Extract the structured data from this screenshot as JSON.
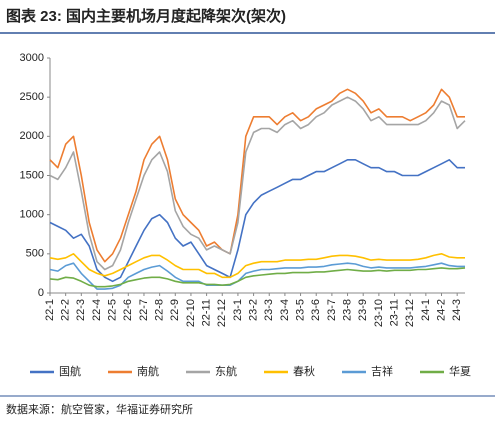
{
  "chart_data": {
    "type": "line",
    "title": "图表 23:  国内主要机场月度起降架次(架次)",
    "source": "数据来源：航空管家，华福证券研究所",
    "categories": [
      "22-1",
      null,
      "22-2",
      null,
      "22-3",
      null,
      "22-4",
      null,
      "22-5",
      null,
      "22-6",
      null,
      "22-7",
      null,
      "22-8",
      null,
      "22-9",
      null,
      "22-10",
      null,
      "22-11",
      null,
      "22-12",
      null,
      "23-1",
      null,
      "23-2",
      null,
      "23-3",
      null,
      "23-4",
      null,
      "23-5",
      null,
      "23-6",
      null,
      "23-7",
      null,
      "23-8",
      null,
      "23-9",
      null,
      "23-10",
      null,
      "23-11",
      null,
      "23-12",
      null,
      "24-1",
      null,
      "24-2",
      null,
      "24-3",
      null
    ],
    "ylim": [
      0,
      3000
    ],
    "yticks": [
      0,
      500,
      1000,
      1500,
      2000,
      2500,
      3000
    ],
    "grid": false,
    "legend": "bottom",
    "series": [
      {
        "name": "国航",
        "color": "#4472c4",
        "values": [
          900,
          850,
          800,
          700,
          750,
          600,
          300,
          200,
          150,
          200,
          400,
          600,
          800,
          950,
          1000,
          900,
          700,
          600,
          650,
          500,
          350,
          300,
          250,
          200,
          550,
          1000,
          1150,
          1250,
          1300,
          1350,
          1400,
          1450,
          1450,
          1500,
          1550,
          1550,
          1600,
          1650,
          1700,
          1700,
          1650,
          1600,
          1600,
          1550,
          1550,
          1500,
          1500,
          1500,
          1550,
          1600,
          1650,
          1700,
          1600,
          1600
        ]
      },
      {
        "name": "南航",
        "color": "#ed7d31",
        "values": [
          1700,
          1600,
          1900,
          2000,
          1500,
          900,
          550,
          400,
          500,
          700,
          1000,
          1300,
          1700,
          1900,
          2000,
          1700,
          1200,
          1000,
          900,
          800,
          600,
          650,
          550,
          500,
          1000,
          2000,
          2250,
          2250,
          2250,
          2150,
          2250,
          2300,
          2200,
          2250,
          2350,
          2400,
          2450,
          2550,
          2600,
          2550,
          2450,
          2300,
          2350,
          2250,
          2250,
          2250,
          2200,
          2250,
          2300,
          2400,
          2600,
          2500,
          2250,
          2250
        ]
      },
      {
        "name": "东航",
        "color": "#a5a5a5",
        "values": [
          1500,
          1450,
          1600,
          1800,
          1300,
          750,
          400,
          300,
          350,
          550,
          900,
          1200,
          1500,
          1700,
          1800,
          1550,
          1050,
          850,
          750,
          700,
          550,
          600,
          550,
          500,
          900,
          1800,
          2050,
          2100,
          2100,
          2050,
          2150,
          2200,
          2100,
          2150,
          2250,
          2300,
          2400,
          2450,
          2500,
          2450,
          2350,
          2200,
          2250,
          2150,
          2150,
          2150,
          2150,
          2150,
          2200,
          2300,
          2450,
          2400,
          2100,
          2200
        ]
      },
      {
        "name": "春秋",
        "color": "#ffc000",
        "values": [
          450,
          430,
          450,
          500,
          400,
          300,
          250,
          220,
          250,
          300,
          350,
          400,
          450,
          480,
          480,
          420,
          350,
          300,
          300,
          300,
          250,
          250,
          200,
          200,
          250,
          350,
          380,
          400,
          400,
          400,
          420,
          420,
          420,
          430,
          430,
          450,
          470,
          480,
          480,
          470,
          450,
          420,
          430,
          420,
          420,
          420,
          420,
          430,
          450,
          480,
          500,
          460,
          450,
          450
        ]
      },
      {
        "name": "吉祥",
        "color": "#5b9bd5",
        "values": [
          300,
          280,
          350,
          380,
          250,
          150,
          50,
          50,
          60,
          100,
          200,
          250,
          300,
          330,
          350,
          280,
          200,
          150,
          150,
          150,
          100,
          100,
          100,
          100,
          150,
          250,
          280,
          300,
          300,
          310,
          320,
          320,
          320,
          330,
          330,
          340,
          360,
          370,
          380,
          370,
          340,
          320,
          330,
          320,
          320,
          320,
          320,
          330,
          340,
          360,
          380,
          350,
          340,
          340
        ]
      },
      {
        "name": "华夏",
        "color": "#70ad47",
        "values": [
          180,
          170,
          200,
          190,
          150,
          100,
          80,
          80,
          90,
          110,
          150,
          170,
          190,
          200,
          200,
          180,
          150,
          130,
          130,
          130,
          110,
          110,
          100,
          110,
          150,
          200,
          220,
          230,
          240,
          250,
          250,
          260,
          260,
          260,
          270,
          270,
          280,
          290,
          300,
          290,
          280,
          280,
          290,
          280,
          290,
          290,
          290,
          300,
          300,
          310,
          320,
          310,
          310,
          320
        ]
      }
    ]
  }
}
